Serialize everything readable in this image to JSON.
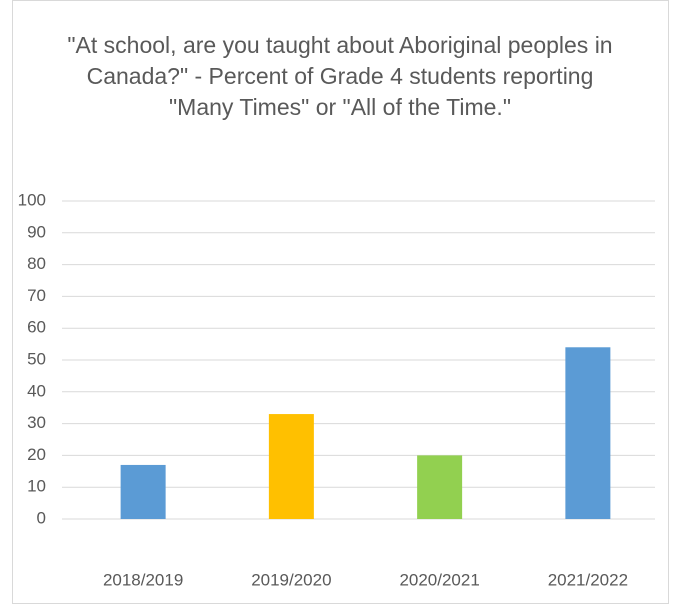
{
  "chart_data": {
    "type": "bar",
    "title": "\"At school, are you taught about Aboriginal peoples in Canada?\" - Percent of Grade 4 students reporting \"Many Times\" or \"All of the Time.\"",
    "categories": [
      "2018/2019",
      "2019/2020",
      "2020/2021",
      "2021/2022"
    ],
    "values": [
      17,
      33,
      20,
      54
    ],
    "colors": [
      "#5b9bd5",
      "#ffc000",
      "#92d050",
      "#5b9bd5"
    ],
    "ylim": [
      0,
      100
    ],
    "yticks": [
      0,
      10,
      20,
      30,
      40,
      50,
      60,
      70,
      80,
      90,
      100
    ],
    "grid": true
  }
}
